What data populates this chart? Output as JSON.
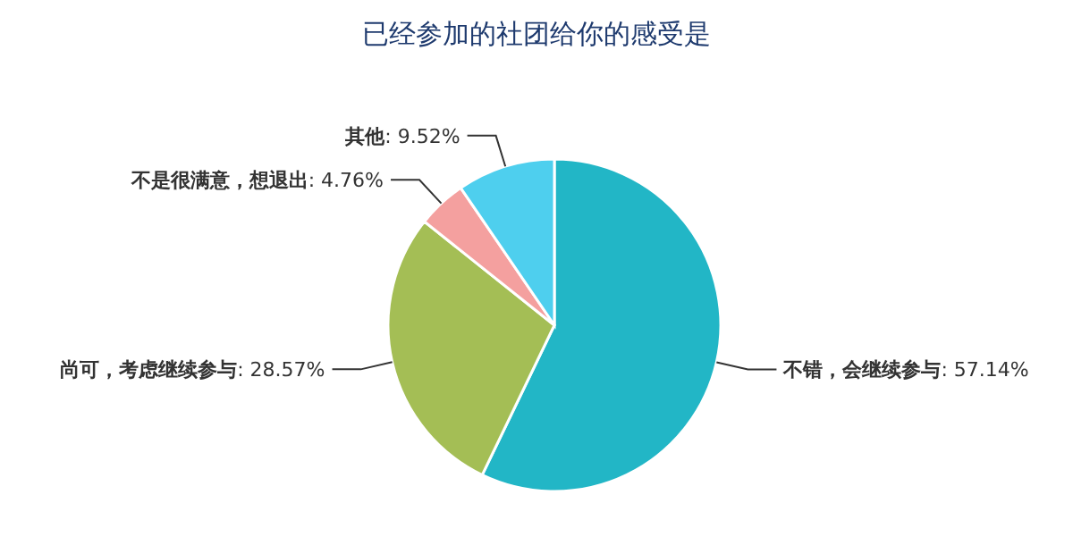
{
  "chart_data": {
    "type": "pie",
    "title": "已经参加的社团给你的感受是",
    "categories": [
      "不错，会继续参与",
      "尚可，考虑继续参与",
      "不是很满意，想退出",
      "其他"
    ],
    "values": [
      57.14,
      28.57,
      4.76,
      9.52
    ],
    "colors": [
      "#22b6c6",
      "#a4be55",
      "#f4a09f",
      "#4ecfee"
    ],
    "value_labels": [
      ": 57.14%",
      ": 28.57%",
      ": 4.76%",
      ": 9.52%"
    ],
    "legend": false
  }
}
